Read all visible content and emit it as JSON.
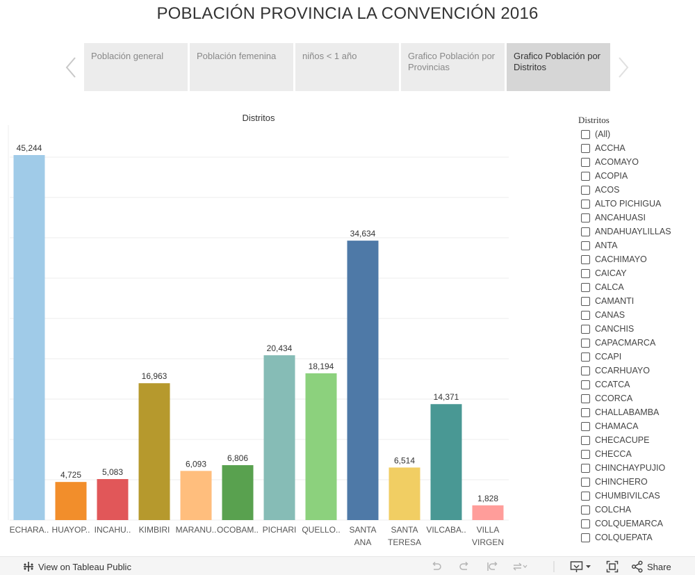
{
  "title": "POBLACIÓN PROVINCIA LA CONVENCIÓN 2016",
  "colors": {
    "tab_bg": "#ececec",
    "tab_active_bg": "#d6d6d6",
    "grid": "#ececec"
  },
  "story_tabs": [
    {
      "label": "Población general",
      "active": false
    },
    {
      "label": "Población femenina",
      "active": false
    },
    {
      "label": "niños < 1 año",
      "active": false
    },
    {
      "label": "Grafico Población por Provincias",
      "active": false
    },
    {
      "label": "Grafico Población por Distritos",
      "active": true
    }
  ],
  "chart_data": {
    "type": "bar",
    "title": "Distritos",
    "xlabel": "",
    "ylabel": "",
    "ylim": [
      0,
      45244
    ],
    "grid": true,
    "data_labels": true,
    "categories": [
      "ECHARA..",
      "HUAYOP..",
      "INCAHU..",
      "KIMBIRI",
      "MARANU..",
      "OCOBAM..",
      "PICHARI",
      "QUELLO..",
      "SANTA ANA",
      "SANTA TERESA",
      "VILCABA..",
      "VILLA VIRGEN"
    ],
    "values": [
      45244,
      4725,
      5083,
      16963,
      6093,
      6806,
      20434,
      18194,
      34634,
      6514,
      14371,
      1828
    ],
    "value_labels": [
      "45,244",
      "4,725",
      "5,083",
      "16,963",
      "6,093",
      "6,806",
      "20,434",
      "18,194",
      "34,634",
      "6,514",
      "14,371",
      "1,828"
    ],
    "colors": [
      "#a0cbe8",
      "#f28e2b",
      "#e15759",
      "#b6992d",
      "#ffbe7d",
      "#59a14f",
      "#86bcb6",
      "#8cd17d",
      "#4e79a7",
      "#f1ce63",
      "#499894",
      "#ff9d9a"
    ]
  },
  "legend": {
    "title": "Distritos",
    "items": [
      "(All)",
      "ACCHA",
      "ACOMAYO",
      "ACOPIA",
      "ACOS",
      "ALTO PICHIGUA",
      "ANCAHUASI",
      "ANDAHUAYLILLAS",
      "ANTA",
      "CACHIMAYO",
      "CAICAY",
      "CALCA",
      "CAMANTI",
      "CANAS",
      "CANCHIS",
      "CAPACMARCA",
      "CCAPI",
      "CCARHUAYO",
      "CCATCA",
      "CCORCA",
      "CHALLABAMBA",
      "CHAMACA",
      "CHECACUPE",
      "CHECCA",
      "CHINCHAYPUJIO",
      "CHINCHERO",
      "CHUMBIVILCAS",
      "COLCHA",
      "COLQUEMARCA",
      "COLQUEPATA"
    ]
  },
  "footer": {
    "view_label": "View on Tableau Public",
    "share_label": "Share"
  }
}
